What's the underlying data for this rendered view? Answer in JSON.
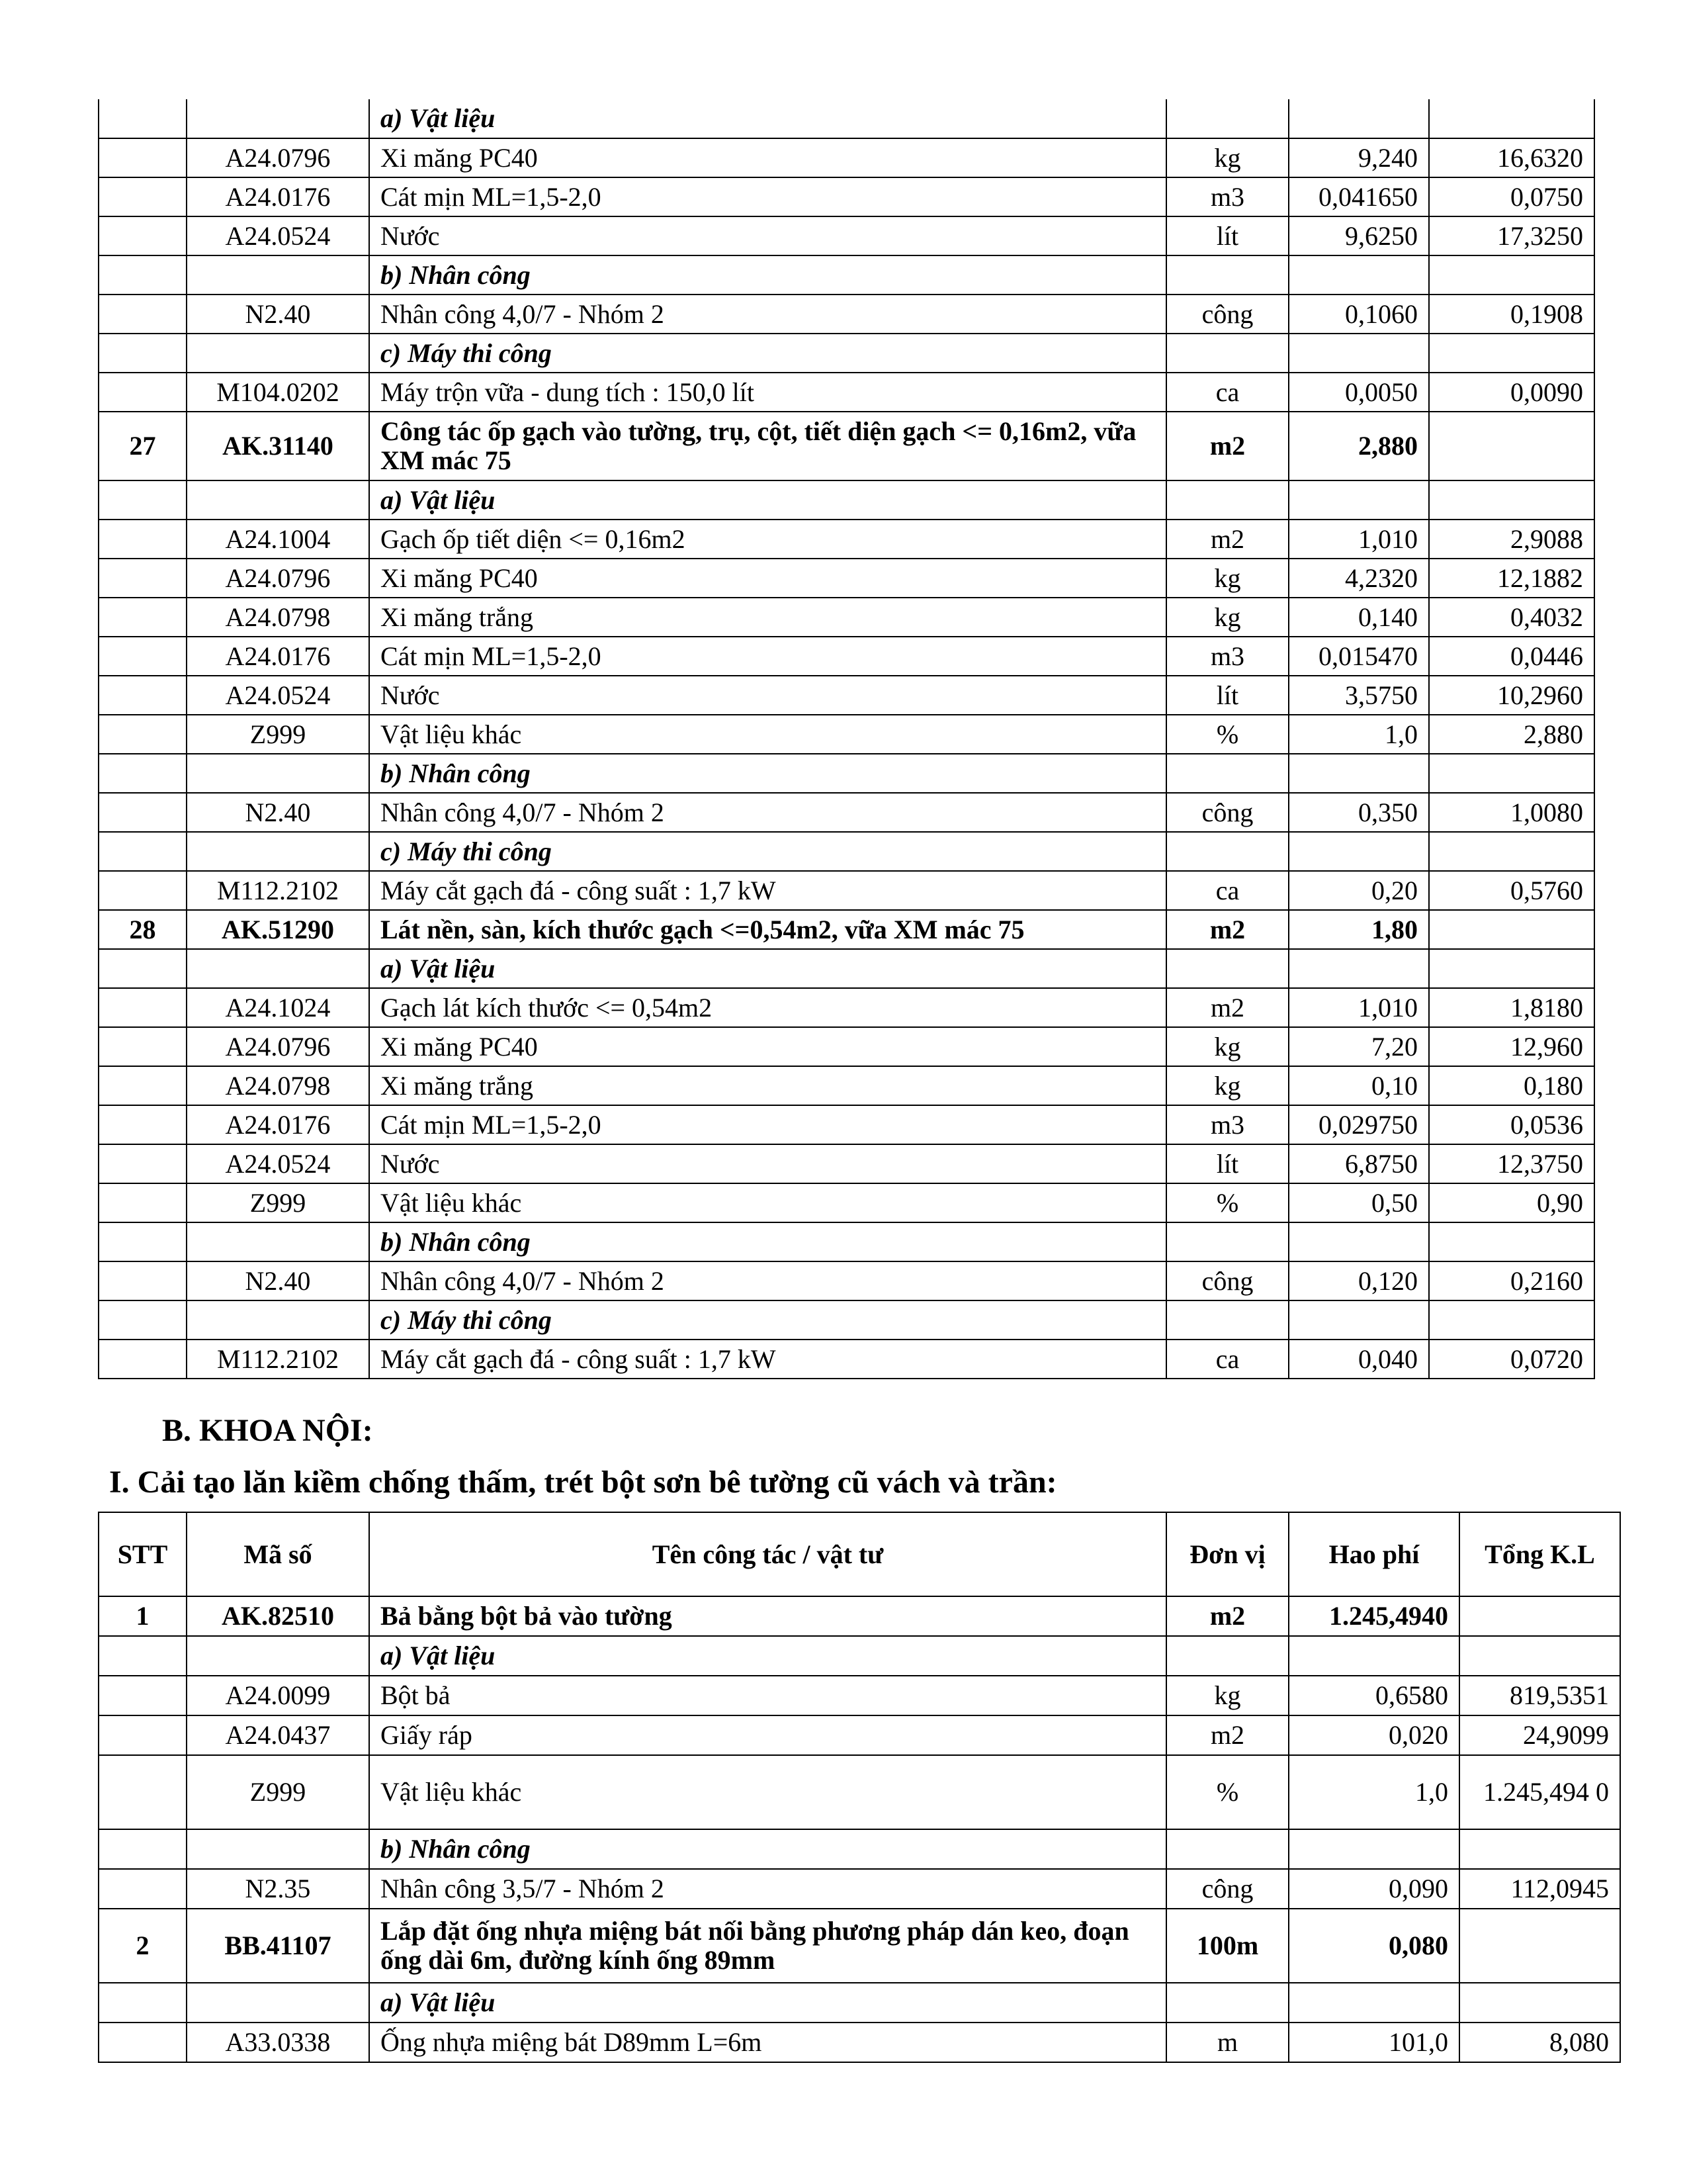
{
  "top_table": {
    "rows": [
      {
        "type": "section",
        "stt": "",
        "code": "",
        "name": "a) Vật liệu",
        "unit": "",
        "hao_phi": "",
        "total": ""
      },
      {
        "type": "material",
        "stt": "",
        "code": "A24.0796",
        "name": "Xi măng PC40",
        "unit": "kg",
        "hao_phi": "9,240",
        "total": "16,6320"
      },
      {
        "type": "material",
        "stt": "",
        "code": "A24.0176",
        "name": "Cát mịn ML=1,5-2,0",
        "unit": "m3",
        "hao_phi": "0,041650",
        "total": "0,0750"
      },
      {
        "type": "material",
        "stt": "",
        "code": "A24.0524",
        "name": "Nước",
        "unit": "lít",
        "hao_phi": "9,6250",
        "total": "17,3250"
      },
      {
        "type": "section",
        "stt": "",
        "code": "",
        "name": "b) Nhân công",
        "unit": "",
        "hao_phi": "",
        "total": ""
      },
      {
        "type": "material",
        "stt": "",
        "code": "N2.40",
        "name": "Nhân công 4,0/7 - Nhóm 2",
        "unit": "công",
        "hao_phi": "0,1060",
        "total": "0,1908"
      },
      {
        "type": "section",
        "stt": "",
        "code": "",
        "name": "c) Máy thi công",
        "unit": "",
        "hao_phi": "",
        "total": ""
      },
      {
        "type": "material",
        "stt": "",
        "code": "M104.0202",
        "name": "Máy trộn vữa - dung tích : 150,0 lít",
        "unit": "ca",
        "hao_phi": "0,0050",
        "total": "0,0090"
      },
      {
        "type": "item",
        "stt": "27",
        "code": "AK.31140",
        "name": "Công tác ốp gạch vào tường, trụ, cột, tiết diện gạch <= 0,16m2, vữa XM mác 75",
        "unit": "m2",
        "hao_phi": "2,880",
        "total": ""
      },
      {
        "type": "section",
        "stt": "",
        "code": "",
        "name": "a) Vật liệu",
        "unit": "",
        "hao_phi": "",
        "total": ""
      },
      {
        "type": "material",
        "stt": "",
        "code": "A24.1004",
        "name": "Gạch ốp tiết diện <= 0,16m2",
        "unit": "m2",
        "hao_phi": "1,010",
        "total": "2,9088"
      },
      {
        "type": "material",
        "stt": "",
        "code": "A24.0796",
        "name": "Xi măng PC40",
        "unit": "kg",
        "hao_phi": "4,2320",
        "total": "12,1882"
      },
      {
        "type": "material",
        "stt": "",
        "code": "A24.0798",
        "name": "Xi măng trắng",
        "unit": "kg",
        "hao_phi": "0,140",
        "total": "0,4032"
      },
      {
        "type": "material",
        "stt": "",
        "code": "A24.0176",
        "name": "Cát mịn ML=1,5-2,0",
        "unit": "m3",
        "hao_phi": "0,015470",
        "total": "0,0446"
      },
      {
        "type": "material",
        "stt": "",
        "code": "A24.0524",
        "name": "Nước",
        "unit": "lít",
        "hao_phi": "3,5750",
        "total": "10,2960"
      },
      {
        "type": "material",
        "stt": "",
        "code": "Z999",
        "name": "Vật liệu khác",
        "unit": "%",
        "hao_phi": "1,0",
        "total": "2,880"
      },
      {
        "type": "section",
        "stt": "",
        "code": "",
        "name": "b) Nhân công",
        "unit": "",
        "hao_phi": "",
        "total": ""
      },
      {
        "type": "material",
        "stt": "",
        "code": "N2.40",
        "name": "Nhân công 4,0/7 - Nhóm 2",
        "unit": "công",
        "hao_phi": "0,350",
        "total": "1,0080"
      },
      {
        "type": "section",
        "stt": "",
        "code": "",
        "name": "c) Máy thi công",
        "unit": "",
        "hao_phi": "",
        "total": ""
      },
      {
        "type": "material",
        "stt": "",
        "code": "M112.2102",
        "name": "Máy cắt gạch đá - công suất : 1,7 kW",
        "unit": "ca",
        "hao_phi": "0,20",
        "total": "0,5760"
      },
      {
        "type": "item",
        "stt": "28",
        "code": "AK.51290",
        "name": "Lát nền, sàn, kích thước gạch <=0,54m2, vữa XM mác 75",
        "unit": "m2",
        "hao_phi": "1,80",
        "total": ""
      },
      {
        "type": "section",
        "stt": "",
        "code": "",
        "name": "a) Vật liệu",
        "unit": "",
        "hao_phi": "",
        "total": ""
      },
      {
        "type": "material",
        "stt": "",
        "code": "A24.1024",
        "name": "Gạch lát kích thước <= 0,54m2",
        "unit": "m2",
        "hao_phi": "1,010",
        "total": "1,8180"
      },
      {
        "type": "material",
        "stt": "",
        "code": "A24.0796",
        "name": "Xi măng PC40",
        "unit": "kg",
        "hao_phi": "7,20",
        "total": "12,960"
      },
      {
        "type": "material",
        "stt": "",
        "code": "A24.0798",
        "name": "Xi măng trắng",
        "unit": "kg",
        "hao_phi": "0,10",
        "total": "0,180"
      },
      {
        "type": "material",
        "stt": "",
        "code": "A24.0176",
        "name": "Cát mịn ML=1,5-2,0",
        "unit": "m3",
        "hao_phi": "0,029750",
        "total": "0,0536"
      },
      {
        "type": "material",
        "stt": "",
        "code": "A24.0524",
        "name": "Nước",
        "unit": "lít",
        "hao_phi": "6,8750",
        "total": "12,3750"
      },
      {
        "type": "material",
        "stt": "",
        "code": "Z999",
        "name": "Vật liệu khác",
        "unit": "%",
        "hao_phi": "0,50",
        "total": "0,90"
      },
      {
        "type": "section",
        "stt": "",
        "code": "",
        "name": "b) Nhân công",
        "unit": "",
        "hao_phi": "",
        "total": ""
      },
      {
        "type": "material",
        "stt": "",
        "code": "N2.40",
        "name": "Nhân công 4,0/7 - Nhóm 2",
        "unit": "công",
        "hao_phi": "0,120",
        "total": "0,2160"
      },
      {
        "type": "section",
        "stt": "",
        "code": "",
        "name": "c) Máy thi công",
        "unit": "",
        "hao_phi": "",
        "total": ""
      },
      {
        "type": "material",
        "stt": "",
        "code": "M112.2102",
        "name": "Máy cắt gạch đá - công suất : 1,7 kW",
        "unit": "ca",
        "hao_phi": "0,040",
        "total": "0,0720"
      }
    ]
  },
  "section_b_heading": "B.  KHOA NỘI:",
  "section_i_heading": "I. Cải tạo lăn kiềm chống thấm, trét bột sơn bê tường cũ vách và trần:",
  "bottom_table": {
    "headers": {
      "stt": "STT",
      "code": "Mã số",
      "name": "Tên công tác / vật tư",
      "unit": "Đơn vị",
      "hao_phi": "Hao phí",
      "total": "Tổng K.L"
    },
    "rows": [
      {
        "type": "item",
        "stt": "1",
        "code": "AK.82510",
        "name": "Bả bằng bột bả vào tường",
        "unit": "m2",
        "hao_phi": "1.245,4940",
        "total": ""
      },
      {
        "type": "section",
        "stt": "",
        "code": "",
        "name": "a) Vật liệu",
        "unit": "",
        "hao_phi": "",
        "total": ""
      },
      {
        "type": "material",
        "stt": "",
        "code": "A24.0099",
        "name": "Bột bả",
        "unit": "kg",
        "hao_phi": "0,6580",
        "total": "819,5351"
      },
      {
        "type": "material",
        "stt": "",
        "code": "A24.0437",
        "name": "Giấy ráp",
        "unit": "m2",
        "hao_phi": "0,020",
        "total": "24,9099"
      },
      {
        "type": "material",
        "stt": "",
        "code": "Z999",
        "name": "Vật liệu khác",
        "unit": "%",
        "hao_phi": "1,0",
        "total": "1.245,494 0"
      },
      {
        "type": "section",
        "stt": "",
        "code": "",
        "name": "b) Nhân công",
        "unit": "",
        "hao_phi": "",
        "total": ""
      },
      {
        "type": "material",
        "stt": "",
        "code": "N2.35",
        "name": "Nhân công 3,5/7 - Nhóm 2",
        "unit": "công",
        "hao_phi": "0,090",
        "total": "112,0945"
      },
      {
        "type": "item",
        "stt": "2",
        "code": "BB.41107",
        "name": "Lắp đặt ống nhựa miệng bát nối bằng phương pháp dán keo, đoạn ống dài 6m, đường kính ống 89mm",
        "unit": "100m",
        "hao_phi": "0,080",
        "total": ""
      },
      {
        "type": "section",
        "stt": "",
        "code": "",
        "name": "a) Vật liệu",
        "unit": "",
        "hao_phi": "",
        "total": ""
      },
      {
        "type": "material",
        "stt": "",
        "code": "A33.0338",
        "name": "Ống nhựa miệng bát D89mm L=6m",
        "unit": "m",
        "hao_phi": "101,0",
        "total": "8,080"
      }
    ]
  }
}
